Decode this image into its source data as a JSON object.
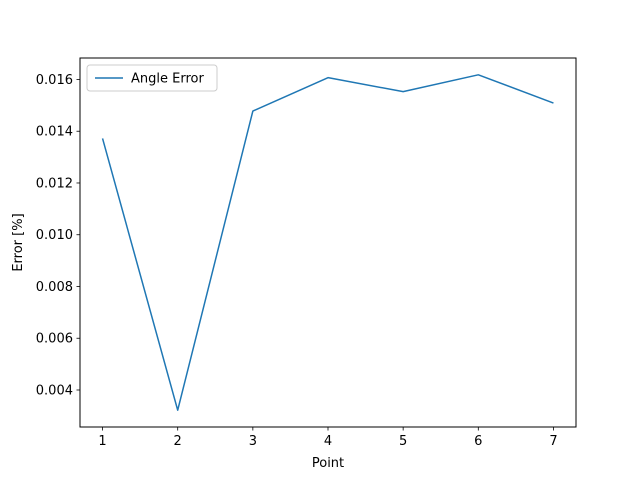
{
  "chart_data": {
    "type": "line",
    "title": "",
    "xlabel": "Point",
    "ylabel": "Error [%]",
    "x": [
      1,
      2,
      3,
      4,
      5,
      6,
      7
    ],
    "series": [
      {
        "name": "Angle Error",
        "color": "#1f77b4",
        "values": [
          0.01372,
          0.00322,
          0.01478,
          0.01607,
          0.01553,
          0.01618,
          0.01509
        ]
      }
    ],
    "xlim": [
      0.7,
      7.3
    ],
    "ylim": [
      0.00257,
      0.01683
    ],
    "xticks": [
      1,
      2,
      3,
      4,
      5,
      6,
      7
    ],
    "xtick_labels": [
      "1",
      "2",
      "3",
      "4",
      "5",
      "6",
      "7"
    ],
    "yticks": [
      0.004,
      0.006,
      0.008,
      0.01,
      0.012,
      0.014,
      0.016
    ],
    "ytick_labels": [
      "0.004",
      "0.006",
      "0.008",
      "0.010",
      "0.012",
      "0.014",
      "0.016"
    ],
    "grid": false,
    "legend_position": "top-left"
  }
}
